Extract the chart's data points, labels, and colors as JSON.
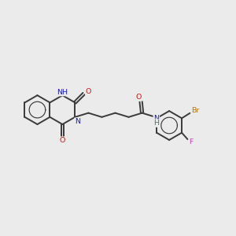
{
  "background_color": "#ebebeb",
  "bond_color": "#3a3a3a",
  "atom_colors": {
    "N": "#1818cc",
    "O": "#cc1818",
    "F": "#cc44bb",
    "Br": "#bb7700",
    "H": "#507070",
    "C": "#3a3a3a"
  },
  "figsize": [
    3.0,
    3.0
  ],
  "dpi": 100,
  "bl": 0.62
}
